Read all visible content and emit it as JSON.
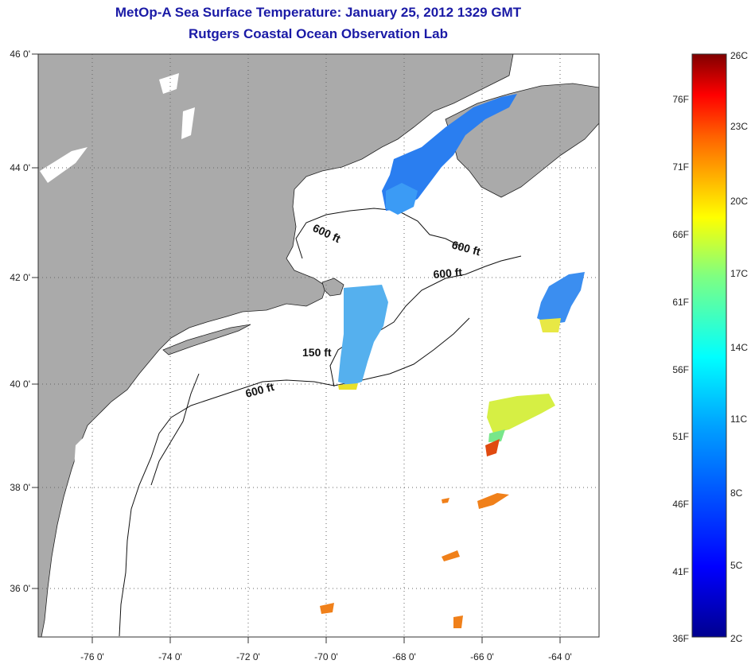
{
  "title": "MetOp-A Sea Surface Temperature:  January 25, 2012 1329 GMT",
  "subtitle": "Rutgers Coastal Ocean Observation Lab",
  "lat_labels": [
    "46 0'",
    "44 0'",
    "42 0'",
    "40 0'",
    "38 0'",
    "36 0'"
  ],
  "lon_labels": [
    "-76 0'",
    "-74 0'",
    "-72 0'",
    "-70 0'",
    "-68 0'",
    "-66 0'",
    "-64 0'"
  ],
  "contour_labels": [
    "600 ft",
    "600 ft",
    "600 ft",
    "150 ft",
    "600 ft"
  ],
  "colorbar": {
    "celsius": [
      "26C",
      "23C",
      "20C",
      "17C",
      "14C",
      "11C",
      "8C",
      "5C",
      "2C"
    ],
    "fahrenheit": [
      "76F",
      "71F",
      "66F",
      "61F",
      "56F",
      "51F",
      "46F",
      "41F",
      "36F"
    ]
  },
  "colors": {
    "land": "#aaaaaa",
    "title": "#1a1aa6",
    "ocean": "#ffffff"
  }
}
